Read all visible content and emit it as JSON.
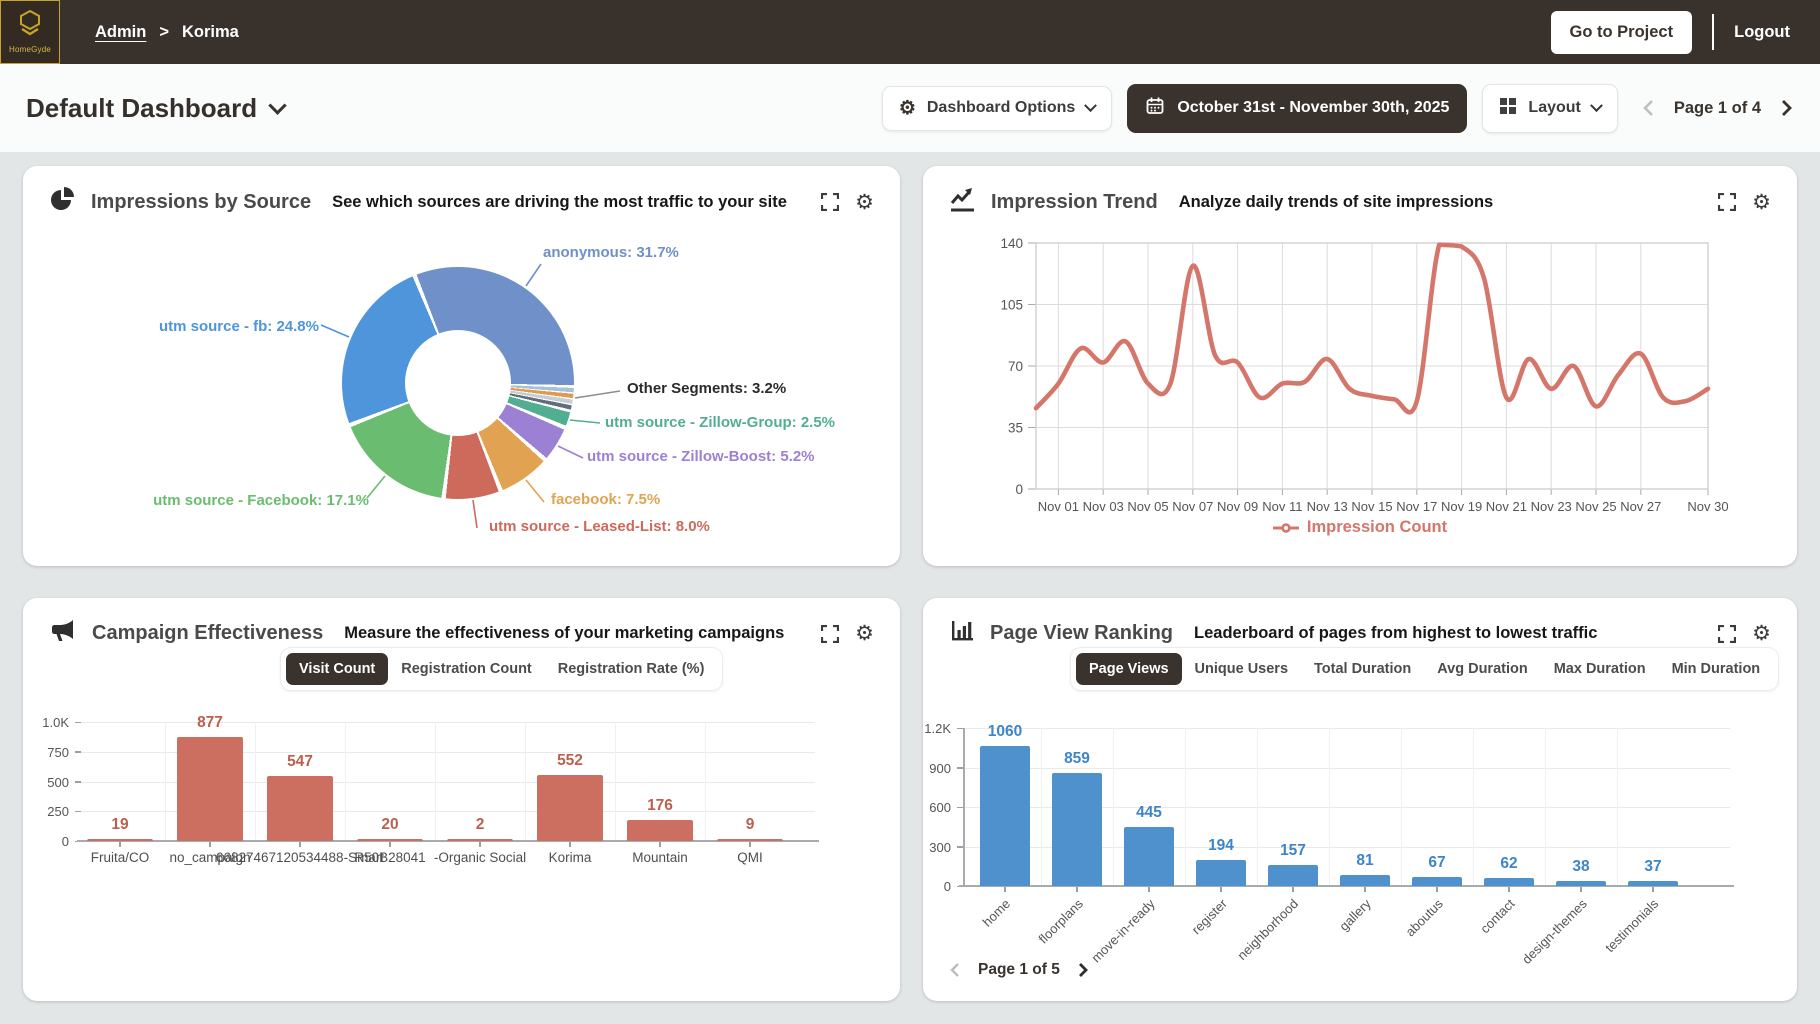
{
  "header": {
    "logo": {
      "caption": "HomeGyde"
    },
    "breadcrumb": {
      "admin": "Admin",
      "separator": ">",
      "current": "Korima"
    },
    "go_to_project": "Go to Project",
    "logout": "Logout"
  },
  "toolbar": {
    "dashboard_title": "Default Dashboard",
    "dashboard_options": "Dashboard Options",
    "date_range": "October 31st - November 30th, 2025",
    "layout": "Layout",
    "page_indicator": "Page 1 of 4"
  },
  "impressions": {
    "title": "Impressions by Source",
    "subtitle": "See which sources are driving the most traffic to your site",
    "chart_data": {
      "type": "pie",
      "donut": true,
      "start_angle_deg": -22,
      "slices": [
        {
          "label": "anonymous",
          "value": 31.7,
          "text": "anonymous: 31.7%",
          "color": "#6f90c8"
        },
        {
          "label": "Other Segments",
          "value": 3.2,
          "text": "Other Segments: 3.2%",
          "color": "#5f6e7c",
          "label_color": "#2b2b2b",
          "sub_colors": [
            "#a9c0dc",
            "#dd9d4e",
            "#c7cdd2",
            "#5f6e7c"
          ]
        },
        {
          "label": "utm source - Zillow-Group",
          "value": 2.5,
          "text": "utm source - Zillow-Group: 2.5%",
          "color": "#52ae90"
        },
        {
          "label": "utm source - Zillow-Boost",
          "value": 5.2,
          "text": "utm source - Zillow-Boost: 5.2%",
          "color": "#9c80d3"
        },
        {
          "label": "facebook",
          "value": 7.5,
          "text": "facebook: 7.5%",
          "color": "#e1a351"
        },
        {
          "label": "utm source - Leased-List",
          "value": 8.0,
          "text": "utm source - Leased-List: 8.0%",
          "color": "#cd6a5b"
        },
        {
          "label": "utm source - Facebook",
          "value": 17.1,
          "text": "utm source - Facebook: 17.1%",
          "color": "#6abd70"
        },
        {
          "label": "utm source - fb",
          "value": 24.8,
          "text": "utm source - fb: 24.8%",
          "color": "#4e95dc"
        }
      ]
    }
  },
  "trend": {
    "title": "Impression Trend",
    "subtitle": "Analyze daily trends of site impressions",
    "legend": "Impression Count",
    "chart_data": {
      "type": "line",
      "color": "#d4766a",
      "x_start": "Oct 31",
      "x_end": "Nov 30",
      "x_tick_labels": [
        "Nov 01",
        "Nov 03",
        "Nov 05",
        "Nov 07",
        "Nov 09",
        "Nov 11",
        "Nov 13",
        "Nov 15",
        "Nov 17",
        "Nov 19",
        "Nov 21",
        "Nov 23",
        "Nov 25",
        "Nov 27",
        "Nov 30"
      ],
      "x_tick_day_index": [
        1,
        3,
        5,
        7,
        9,
        11,
        13,
        15,
        17,
        19,
        21,
        23,
        25,
        27,
        30
      ],
      "y_ticks": [
        0,
        35,
        70,
        105,
        140
      ],
      "ylim": [
        0,
        140
      ],
      "grid": true,
      "values": [
        46,
        60,
        80,
        72,
        84,
        60,
        60,
        127,
        76,
        72,
        52,
        60,
        61,
        74,
        57,
        53,
        51,
        50,
        139,
        138,
        120,
        52,
        74,
        57,
        70,
        47,
        65,
        77,
        52,
        50,
        57
      ]
    }
  },
  "campaign": {
    "title": "Campaign Effectiveness",
    "subtitle": "Measure the effectiveness of your marketing campaigns",
    "tabs": [
      {
        "label": "Visit Count",
        "active": true
      },
      {
        "label": "Registration Count",
        "active": false
      },
      {
        "label": "Registration Rate (%)",
        "active": false
      }
    ],
    "chart_data": {
      "type": "bar",
      "color": "#cd6f60",
      "value_label_color": "#bd5f4e",
      "y_tick_labels": [
        "0",
        "250",
        "500",
        "750",
        "1.0K"
      ],
      "ylim": [
        0,
        1000
      ],
      "categories": [
        "Fruita/CO",
        "no_campaign",
        "66827467120534488-Smart",
        "R50B28041",
        "-Organic Social",
        "Korima",
        "Mountain",
        "QMI"
      ],
      "values": [
        19,
        877,
        547,
        20,
        2,
        552,
        176,
        9
      ]
    }
  },
  "pageview": {
    "title": "Page View Ranking",
    "subtitle": "Leaderboard of pages from highest to lowest traffic",
    "tabs": [
      {
        "label": "Page Views",
        "active": true
      },
      {
        "label": "Unique Users",
        "active": false
      },
      {
        "label": "Total Duration",
        "active": false
      },
      {
        "label": "Avg Duration",
        "active": false
      },
      {
        "label": "Max Duration",
        "active": false
      },
      {
        "label": "Min Duration",
        "active": false
      }
    ],
    "page_indicator": "Page 1 of 5",
    "chart_data": {
      "type": "bar",
      "color": "#4e91cc",
      "value_label_color": "#3d85c8",
      "y_tick_labels": [
        "0",
        "300",
        "600",
        "900",
        "1.2K"
      ],
      "ylim": [
        0,
        1200
      ],
      "categories": [
        "home",
        "floorplans",
        "move-in-ready",
        "register",
        "neighborhood",
        "gallery",
        "aboutus",
        "contact",
        "design-themes",
        "testimonials"
      ],
      "values": [
        1060,
        859,
        445,
        194,
        157,
        81,
        67,
        62,
        38,
        37
      ]
    }
  }
}
